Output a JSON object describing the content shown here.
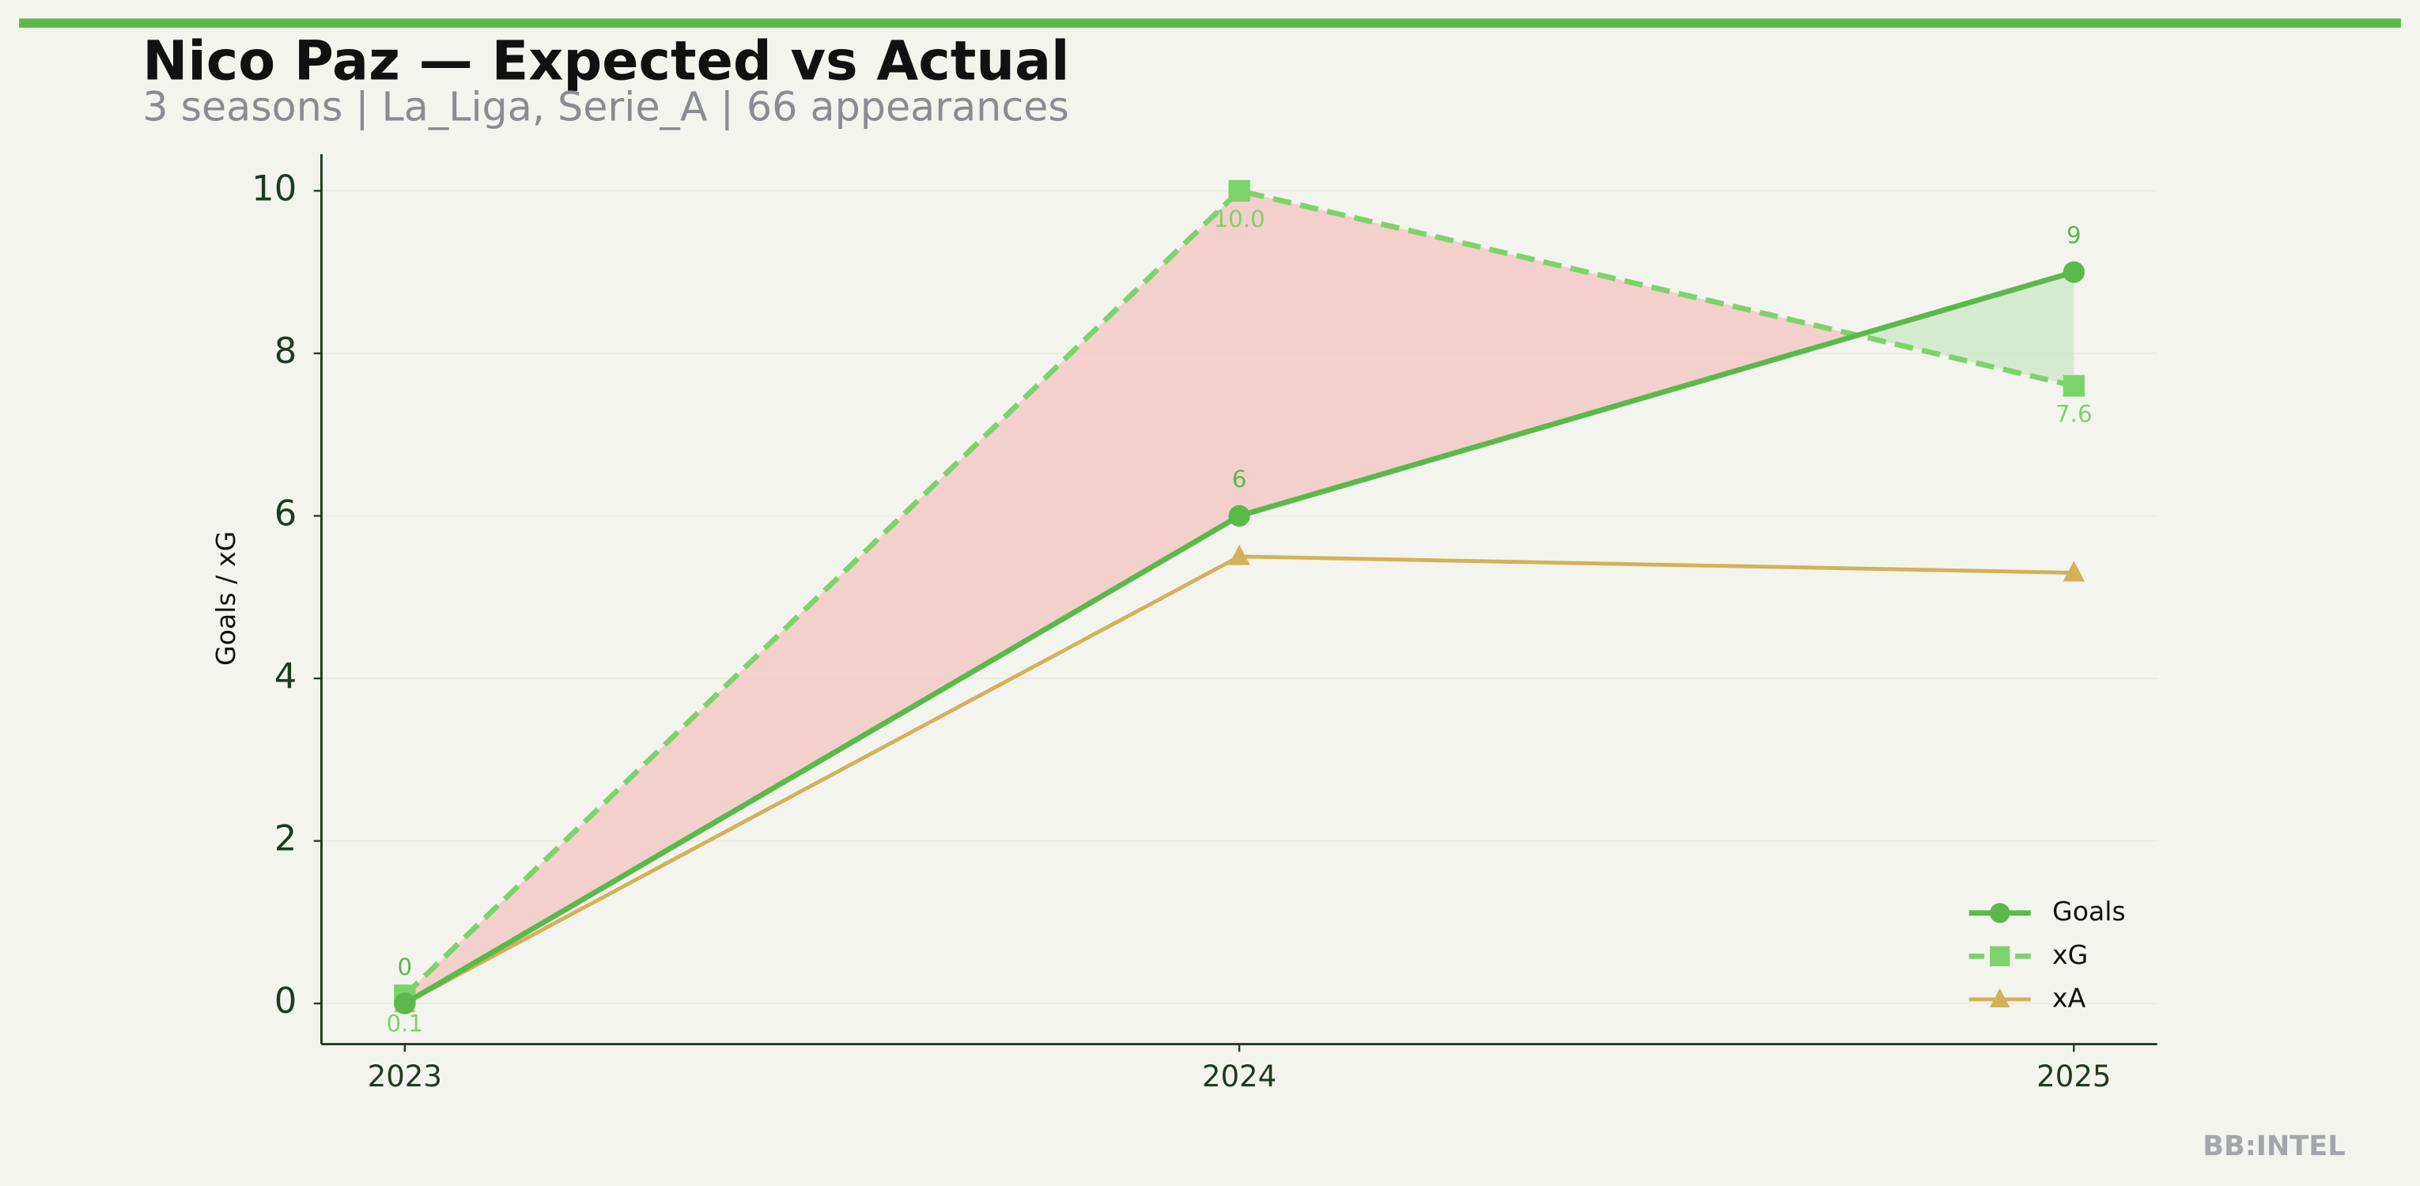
{
  "chart_data": {
    "type": "line",
    "title": "Nico Paz — Expected vs Actual",
    "subtitle": "3 seasons | La_Liga, Serie_A | 66 appearances",
    "y_label": "Goals / xG",
    "watermark": "BB:INTEL",
    "categories": [
      "2023",
      "2024",
      "2025"
    ],
    "series": [
      {
        "name": "Goals",
        "color": "#5ab94a",
        "marker": "circle",
        "linestyle": "solid",
        "values": [
          0,
          6,
          9
        ]
      },
      {
        "name": "xG",
        "color": "#7dd36b",
        "marker": "square",
        "linestyle": "dashed",
        "values": [
          0.1,
          10.0,
          7.6
        ],
        "value_labels": [
          "0.1",
          "10.0",
          "7.6"
        ]
      },
      {
        "name": "xA",
        "color": "#d4b05a",
        "marker": "triangle",
        "linestyle": "solid",
        "values": [
          0,
          5.5,
          5.3
        ]
      }
    ],
    "under_color": "#f4c7c3",
    "over_color": "#cde8c8",
    "ylim": [
      -0.5,
      10.45
    ],
    "yticks": [
      0,
      2,
      4,
      6,
      8,
      10
    ],
    "grid": true,
    "legend": "lower right"
  }
}
